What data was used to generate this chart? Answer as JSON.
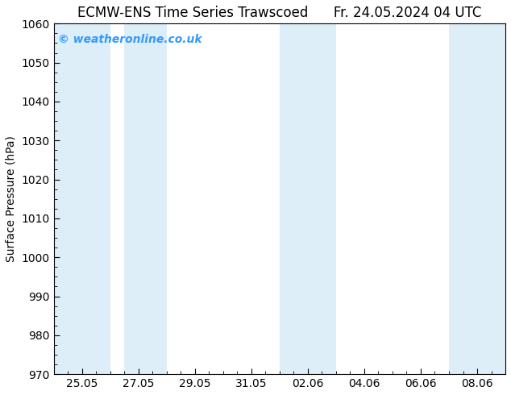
{
  "title_left": "ECMW-ENS Time Series Trawscoed",
  "title_right": "Fr. 24.05.2024 04 UTC",
  "ylabel": "Surface Pressure (hPa)",
  "ylim": [
    970,
    1060
  ],
  "yticks": [
    970,
    980,
    990,
    1000,
    1010,
    1020,
    1030,
    1040,
    1050,
    1060
  ],
  "xtick_labels": [
    "25.05",
    "27.05",
    "29.05",
    "31.05",
    "02.06",
    "04.06",
    "06.06",
    "08.06"
  ],
  "xtick_positions": [
    1,
    3,
    5,
    7,
    9,
    11,
    13,
    15
  ],
  "xlim": [
    0,
    16
  ],
  "shaded_bands": [
    {
      "x_start": 0.0,
      "x_end": 2.0,
      "color": "#ddeef8"
    },
    {
      "x_start": 2.5,
      "x_end": 4.0,
      "color": "#ddeef8"
    },
    {
      "x_start": 8.0,
      "x_end": 10.0,
      "color": "#ddeef8"
    },
    {
      "x_start": 14.0,
      "x_end": 16.0,
      "color": "#ddeef8"
    }
  ],
  "watermark_text": "© weatheronline.co.uk",
  "watermark_color": "#3399ff",
  "background_color": "#ffffff",
  "title_fontsize": 12,
  "label_fontsize": 10,
  "tick_fontsize": 10,
  "watermark_fontsize": 10
}
